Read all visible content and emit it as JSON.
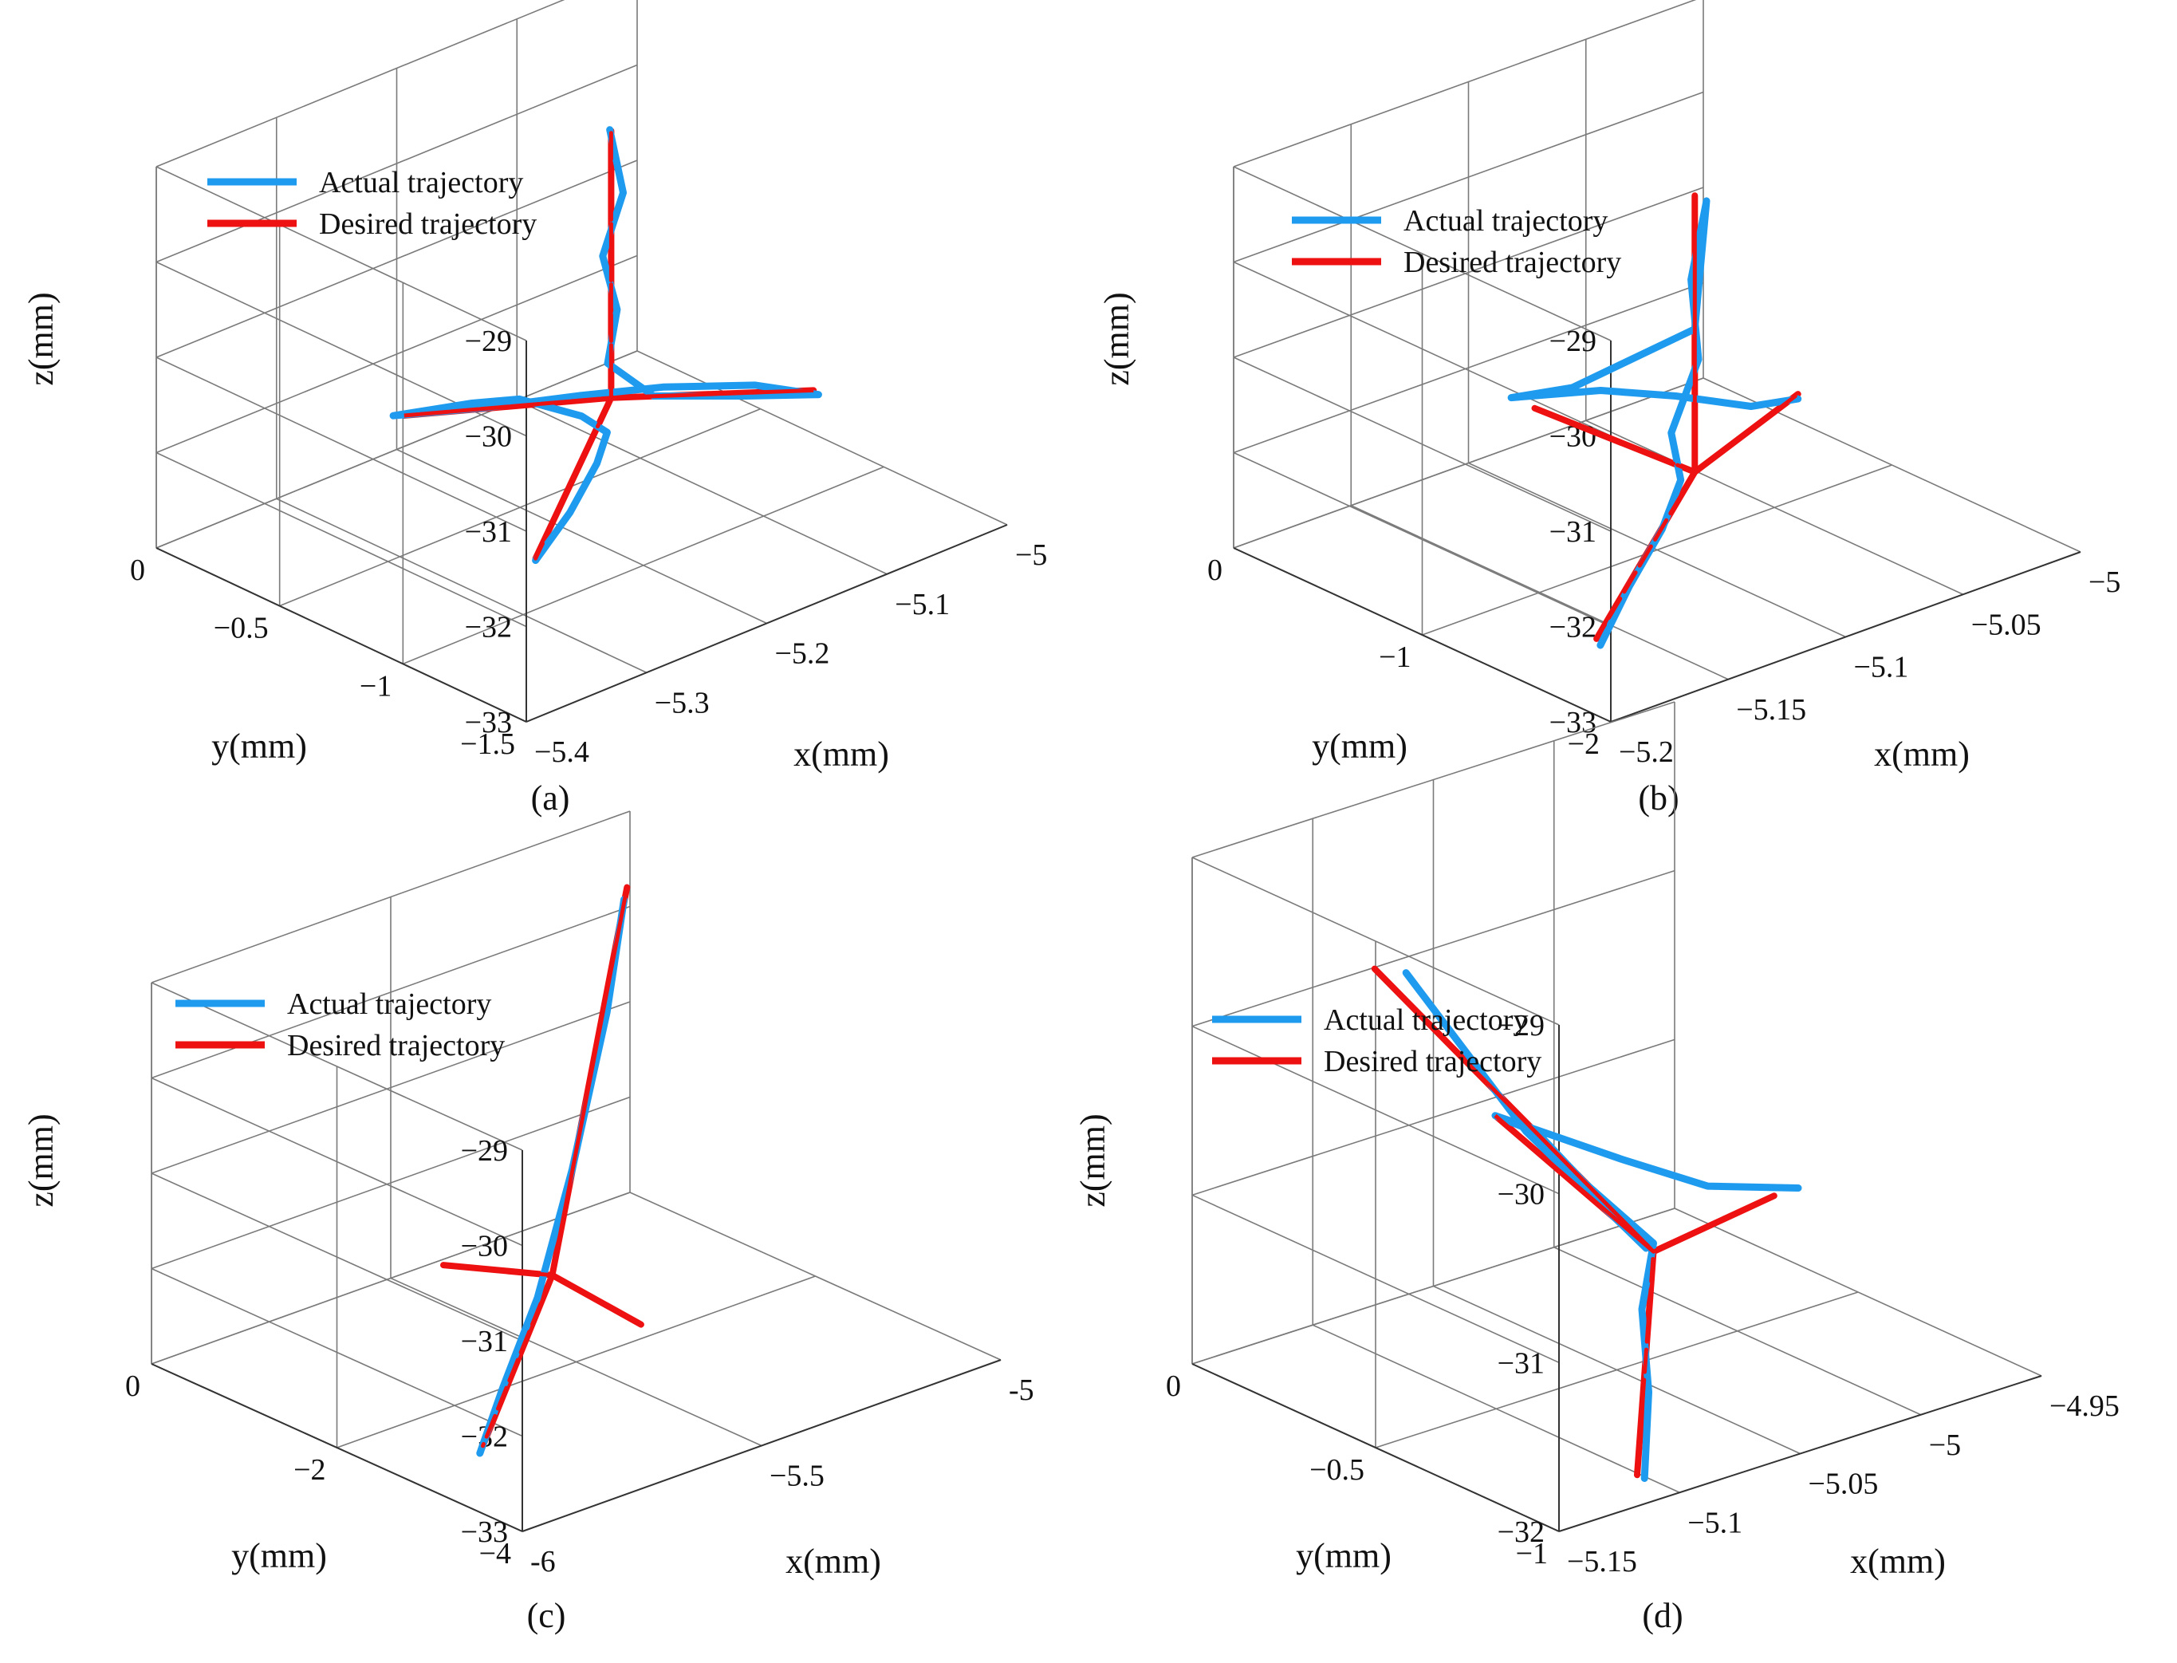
{
  "figure": {
    "background": "#ffffff"
  },
  "colors": {
    "actual": "#1e9bef",
    "desired": "#ee1111",
    "grid": "#7a7a7a"
  },
  "chart_data": [
    {
      "type": "line",
      "panel": "a",
      "caption": "(a)",
      "xlabel": "x(mm)",
      "ylabel": "y(mm)",
      "zlabel": "z(mm)",
      "xlim": [
        -5.4,
        -5.0
      ],
      "ylim": [
        -1.5,
        0
      ],
      "zlim": [
        -33,
        -29
      ],
      "z_ticks": [
        "−29",
        "−30",
        "−31",
        "−32",
        "−33"
      ],
      "y_ticks": [
        "0",
        "−0.5",
        "−1",
        "−1.5"
      ],
      "x_ticks": [
        "−5.4",
        "−5.3",
        "−5.2",
        "−5.1",
        "−5"
      ],
      "legend": [
        "Actual trajectory",
        "Desired trajectory"
      ],
      "legend_position": "top-left",
      "series": [
        {
          "name": "Desired trajectory",
          "points": [
            [
              -5.155,
              -0.65,
              -31.9
            ],
            [
              -5.155,
              -0.65,
              -29.1
            ],
            [
              -5.155,
              -0.65,
              -31.9
            ],
            [
              -5.28,
              -0.42,
              -31.72
            ],
            [
              -5.155,
              -0.65,
              -31.9
            ],
            [
              -5.04,
              -0.91,
              -32.1
            ],
            [
              -5.155,
              -0.65,
              -31.9
            ],
            [
              -5.3,
              -1.05,
              -32.35
            ]
          ]
        },
        {
          "name": "Actual trajectory",
          "points": [
            [
              -5.3,
              -1.05,
              -32.37
            ],
            [
              -5.255,
              -0.97,
              -32.2
            ],
            [
              -5.21,
              -0.86,
              -32.05
            ],
            [
              -5.185,
              -0.78,
              -31.95
            ],
            [
              -5.19,
              -0.7,
              -31.85
            ],
            [
              -5.215,
              -0.57,
              -31.7
            ],
            [
              -5.24,
              -0.5,
              -31.7
            ],
            [
              -5.285,
              -0.4,
              -31.72
            ],
            [
              -5.23,
              -0.5,
              -31.8
            ],
            [
              -5.17,
              -0.6,
              -31.86
            ],
            [
              -5.12,
              -0.69,
              -31.92
            ],
            [
              -5.07,
              -0.82,
              -32.0
            ],
            [
              -5.04,
              -0.93,
              -32.12
            ],
            [
              -5.08,
              -0.83,
              -32.05
            ],
            [
              -5.13,
              -0.7,
              -31.95
            ],
            [
              -5.16,
              -0.66,
              -31.5
            ],
            [
              -5.15,
              -0.65,
              -31.0
            ],
            [
              -5.16,
              -0.64,
              -30.4
            ],
            [
              -5.145,
              -0.65,
              -29.8
            ],
            [
              -5.15,
              -0.62,
              -29.15
            ]
          ]
        }
      ]
    },
    {
      "type": "line",
      "panel": "b",
      "caption": "(b)",
      "xlabel": "x(mm)",
      "ylabel": "y(mm)",
      "zlabel": "z(mm)",
      "xlim": [
        -5.2,
        -5.0
      ],
      "ylim": [
        -2,
        0
      ],
      "zlim": [
        -33,
        -29
      ],
      "z_ticks": [
        "−29",
        "−30",
        "−31",
        "−32",
        "−33"
      ],
      "y_ticks": [
        "0",
        "−1",
        "−2"
      ],
      "x_ticks": [
        "−5.2",
        "−5.15",
        "−5.1",
        "−5.05",
        "−5"
      ],
      "legend": [
        "Actual trajectory",
        "Desired trajectory"
      ],
      "legend_position": "top-left",
      "series": [
        {
          "name": "Desired trajectory",
          "points": [
            [
              -5.1,
              -1.2,
              -32.0
            ],
            [
              -5.1,
              -1.2,
              -29.1
            ],
            [
              -5.1,
              -1.2,
              -32.0
            ],
            [
              -5.12,
              -0.6,
              -31.7
            ],
            [
              -5.1,
              -1.2,
              -32.0
            ],
            [
              -5.04,
              -1.0,
              -31.9
            ],
            [
              -5.1,
              -1.2,
              -32.0
            ],
            [
              -5.19,
              -1.8,
              -32.4
            ]
          ]
        },
        {
          "name": "Actual trajectory",
          "points": [
            [
              -5.19,
              -1.82,
              -32.45
            ],
            [
              -5.16,
              -1.6,
              -32.3
            ],
            [
              -5.13,
              -1.4,
              -32.15
            ],
            [
              -5.11,
              -1.25,
              -31.95
            ],
            [
              -5.11,
              -1.2,
              -31.5
            ],
            [
              -5.1,
              -1.22,
              -30.8
            ],
            [
              -5.1,
              -1.18,
              -30.0
            ],
            [
              -5.095,
              -1.2,
              -29.2
            ],
            [
              -5.1,
              -1.2,
              -30.5
            ],
            [
              -5.12,
              -0.8,
              -31.3
            ],
            [
              -5.13,
              -0.6,
              -31.5
            ],
            [
              -5.1,
              -0.7,
              -31.6
            ],
            [
              -5.08,
              -0.85,
              -31.7
            ],
            [
              -5.06,
              -1.0,
              -31.85
            ],
            [
              -5.04,
              -1.0,
              -31.95
            ]
          ]
        }
      ]
    },
    {
      "type": "line",
      "panel": "c",
      "caption": "(c)",
      "xlabel": "x(mm)",
      "ylabel": "y(mm)",
      "zlabel": "z(mm)",
      "xlim": [
        -6,
        -5
      ],
      "ylim": [
        -4,
        0
      ],
      "zlim": [
        -33,
        -29
      ],
      "z_ticks": [
        "−29",
        "−30",
        "−31",
        "−32",
        "−33"
      ],
      "y_ticks": [
        "0",
        "−2",
        "−4"
      ],
      "x_ticks": [
        "-6",
        "−5.5",
        "-5"
      ],
      "legend": [
        "Actual trajectory",
        "Desired trajectory"
      ],
      "legend_position": "top-left",
      "series": [
        {
          "name": "Desired trajectory",
          "points": [
            [
              -5.55,
              -2.0,
              -32.0
            ],
            [
              -5.2,
              -1.0,
              -29.0
            ],
            [
              -5.55,
              -2.0,
              -32.0
            ],
            [
              -5.7,
              -1.6,
              -31.8
            ],
            [
              -5.55,
              -2.0,
              -32.0
            ],
            [
              -5.5,
              -2.7,
              -32.3
            ],
            [
              -5.55,
              -2.0,
              -32.0
            ],
            [
              -5.85,
              -2.8,
              -32.9
            ]
          ]
        },
        {
          "name": "Actual trajectory",
          "points": [
            [
              -5.86,
              -2.82,
              -32.95
            ],
            [
              -5.75,
              -2.5,
              -32.6
            ],
            [
              -5.6,
              -2.1,
              -32.1
            ],
            [
              -5.45,
              -1.7,
              -31.2
            ],
            [
              -5.3,
              -1.3,
              -30.0
            ],
            [
              -5.21,
              -1.02,
              -29.1
            ]
          ]
        }
      ]
    },
    {
      "type": "line",
      "panel": "d",
      "caption": "(d)",
      "xlabel": "x(mm)",
      "ylabel": "y(mm)",
      "zlabel": "z(mm)",
      "xlim": [
        -5.15,
        -4.95
      ],
      "ylim": [
        -1,
        0
      ],
      "zlim": [
        -32,
        -29
      ],
      "z_ticks": [
        "−29",
        "−30",
        "−31",
        "−32"
      ],
      "y_ticks": [
        "0",
        "−0.5",
        "−1"
      ],
      "x_ticks": [
        "−5.15",
        "−5.1",
        "−5.05",
        "−5",
        "−4.95"
      ],
      "legend": [
        "Actual trajectory",
        "Desired trajectory"
      ],
      "legend_position": "top-left",
      "series": [
        {
          "name": "Desired trajectory",
          "points": [
            [
              -5.05,
              -0.6,
              -31.2
            ],
            [
              -5.12,
              -0.3,
              -29.5
            ],
            [
              -5.05,
              -0.6,
              -31.2
            ],
            [
              -5.07,
              -0.3,
              -30.6
            ],
            [
              -5.05,
              -0.6,
              -31.2
            ],
            [
              -5.0,
              -0.6,
              -31.1
            ],
            [
              -5.05,
              -0.6,
              -31.2
            ],
            [
              -5.11,
              -0.95,
              -31.9
            ]
          ]
        },
        {
          "name": "Actual trajectory",
          "points": [
            [
              -5.11,
              -0.97,
              -31.9
            ],
            [
              -5.09,
              -0.85,
              -31.6
            ],
            [
              -5.07,
              -0.7,
              -31.35
            ],
            [
              -5.05,
              -0.6,
              -31.15
            ],
            [
              -5.08,
              -0.45,
              -30.5
            ],
            [
              -5.11,
              -0.32,
              -29.55
            ],
            [
              -5.08,
              -0.45,
              -30.5
            ],
            [
              -5.05,
              -0.58,
              -31.2
            ],
            [
              -5.06,
              -0.35,
              -30.7
            ],
            [
              -5.07,
              -0.3,
              -30.6
            ],
            [
              -5.04,
              -0.45,
              -30.85
            ],
            [
              -5.02,
              -0.55,
              -31.0
            ],
            [
              -4.99,
              -0.6,
              -31.1
            ]
          ]
        }
      ]
    }
  ]
}
